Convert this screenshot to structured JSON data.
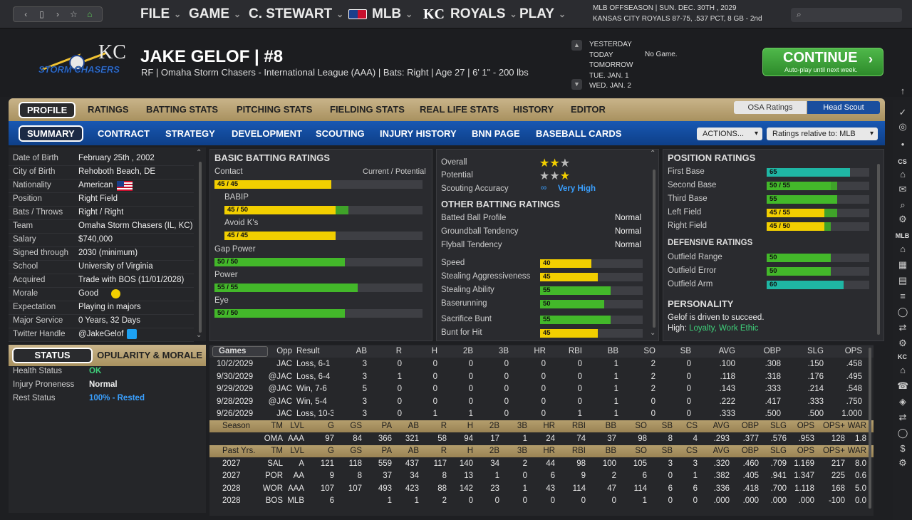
{
  "topbar": {
    "menus": [
      {
        "label": "FILE"
      },
      {
        "label": "GAME"
      },
      {
        "label": "C. STEWART"
      },
      {
        "label": "MLB"
      },
      {
        "label": "ROYALS"
      },
      {
        "label": "PLAY"
      }
    ],
    "context_line1": "MLB OFFSEASON  |  SUN. DEC. 30TH , 2029",
    "context_line2": "KANSAS CITY ROYALS   87-75, .537 PCT, 8 GB - 2nd"
  },
  "header": {
    "player_name": "JAKE GELOF  |  #8",
    "player_info": "RF | Omaha Storm Chasers - International League (AAA)  |  Bats: Right  |  Age 27  |  6' 1\" - 200 lbs",
    "logo_text": "STORM CHASERS",
    "dates": [
      "YESTERDAY",
      "TODAY",
      "TOMORROW",
      "TUE. JAN. 1",
      "WED. JAN. 2"
    ],
    "today_status": "No Game.",
    "continue_label": "CONTINUE",
    "continue_sub": "Auto-play until next week."
  },
  "tabs_primary": [
    "PROFILE",
    "RATINGS",
    "BATTING STATS",
    "PITCHING STATS",
    "FIELDING STATS",
    "REAL LIFE STATS",
    "HISTORY",
    "EDITOR"
  ],
  "tabs_secondary": [
    "SUMMARY",
    "CONTRACT",
    "STRATEGY",
    "DEVELOPMENT",
    "SCOUTING",
    "INJURY HISTORY",
    "BNN PAGE",
    "BASEBALL CARDS"
  ],
  "ratings_toggle": {
    "osa": "OSA Ratings",
    "scout": "Head Scout"
  },
  "actions_label": "ACTIONS...",
  "ratings_relative_label": "Ratings relative to: MLB",
  "bio": [
    {
      "label": "Date of Birth",
      "value": "February 25th , 2002"
    },
    {
      "label": "City of Birth",
      "value": "Rehoboth Beach, DE"
    },
    {
      "label": "Nationality",
      "value": "American"
    },
    {
      "label": "Position",
      "value": "Right Field"
    },
    {
      "label": "Bats / Throws",
      "value": "Right / Right"
    },
    {
      "label": "Team",
      "value": "Omaha Storm Chasers (IL, KC)"
    },
    {
      "label": "Salary",
      "value": "$740,000"
    },
    {
      "label": "Signed through",
      "value": "2030 (minimum)"
    },
    {
      "label": "School",
      "value": "University of Virginia"
    },
    {
      "label": "Acquired",
      "value": "Trade with BOS (11/01/2028)"
    },
    {
      "label": "Morale",
      "value": "Good"
    },
    {
      "label": "Expectation",
      "value": "Playing in majors"
    },
    {
      "label": "Major Service",
      "value": "0 Years, 32 Days"
    },
    {
      "label": "Twitter Handle",
      "value": "@JakeGelof"
    }
  ],
  "basic_batting": {
    "title": "BASIC BATTING RATINGS",
    "header": "Current / Potential",
    "items": [
      {
        "label": "Contact",
        "text": "45 / 45",
        "current": 45,
        "potential": 45,
        "color": "#f2cf00"
      },
      {
        "label": "BABIP",
        "text": "45 / 50",
        "current": 45,
        "potential": 50,
        "color": "#f2cf00"
      },
      {
        "label": "Avoid K's",
        "text": "45 / 45",
        "current": 45,
        "potential": 45,
        "color": "#f2cf00"
      },
      {
        "label": "Gap Power",
        "text": "50 / 50",
        "current": 50,
        "potential": 50,
        "color": "#43b82a"
      },
      {
        "label": "Power",
        "text": "55 / 55",
        "current": 55,
        "potential": 55,
        "color": "#43b82a"
      },
      {
        "label": "Eye",
        "text": "50 / 50",
        "current": 50,
        "potential": 50,
        "color": "#43b82a"
      }
    ]
  },
  "summary": {
    "overall_label": "Overall",
    "overall_stars": 2.5,
    "potential_label": "Potential",
    "potential_stars": 2.5,
    "accuracy_label": "Scouting Accuracy",
    "accuracy_value": "Very High",
    "other_title": "OTHER BATTING RATINGS",
    "tendencies": [
      {
        "label": "Batted Ball Profile",
        "value": "Normal"
      },
      {
        "label": "Groundball Tendency",
        "value": "Normal"
      },
      {
        "label": "Flyball Tendency",
        "value": "Normal"
      }
    ],
    "running": [
      {
        "label": "Speed",
        "value": 40,
        "color": "#f2cf00"
      },
      {
        "label": "Stealing Aggressiveness",
        "value": 45,
        "color": "#f2cf00"
      },
      {
        "label": "Stealing Ability",
        "value": 55,
        "color": "#43b82a"
      },
      {
        "label": "Baserunning",
        "value": 50,
        "color": "#43b82a"
      }
    ],
    "bunting": [
      {
        "label": "Sacrifice Bunt",
        "value": 55,
        "color": "#43b82a"
      },
      {
        "label": "Bunt for Hit",
        "value": 45,
        "color": "#f2cf00"
      }
    ]
  },
  "position": {
    "title": "POSITION RATINGS",
    "items": [
      {
        "label": "First Base",
        "text": "65",
        "current": 65,
        "potential": 65,
        "color": "#1fb6a4"
      },
      {
        "label": "Second Base",
        "text": "50 / 55",
        "current": 50,
        "potential": 55,
        "color": "#43b82a"
      },
      {
        "label": "Third Base",
        "text": "55",
        "current": 55,
        "potential": 55,
        "color": "#43b82a"
      },
      {
        "label": "Left Field",
        "text": "45 / 55",
        "current": 45,
        "potential": 55,
        "color": "#f2cf00"
      },
      {
        "label": "Right Field",
        "text": "45 / 50",
        "current": 45,
        "potential": 50,
        "color": "#f2cf00"
      }
    ],
    "def_title": "DEFENSIVE RATINGS",
    "defense": [
      {
        "label": "Outfield Range",
        "text": "50",
        "current": 50,
        "potential": 50,
        "color": "#43b82a"
      },
      {
        "label": "Outfield Error",
        "text": "50",
        "current": 50,
        "potential": 50,
        "color": "#43b82a"
      },
      {
        "label": "Outfield Arm",
        "text": "60",
        "current": 60,
        "potential": 60,
        "color": "#1fb6a4"
      }
    ],
    "personality_title": "PERSONALITY",
    "personality_text": "Gelof is driven to succeed.",
    "personality_high_label": "High:",
    "personality_high": "Loyalty, Work Ethic"
  },
  "status": {
    "tab_status": "STATUS",
    "tab_popularity": "POPULARITY & MORALE",
    "rows": [
      {
        "label": "Health Status",
        "value": "OK",
        "color": "#3fd07a"
      },
      {
        "label": "Injury Proneness",
        "value": "Normal",
        "color": "#eeeeee"
      },
      {
        "label": "Rest Status",
        "value": "100% - Rested",
        "color": "#3aa0ff"
      }
    ]
  },
  "games": {
    "headers": [
      "Games",
      "Opp",
      "Result",
      "AB",
      "R",
      "H",
      "2B",
      "3B",
      "HR",
      "RBI",
      "BB",
      "SO",
      "SB",
      "AVG",
      "OBP",
      "SLG",
      "OPS"
    ],
    "rows": [
      [
        "10/2/2029",
        "JAC",
        "Loss, 6-1",
        "3",
        "0",
        "0",
        "0",
        "0",
        "0",
        "0",
        "1",
        "2",
        "0",
        ".100",
        ".308",
        ".150",
        ".458"
      ],
      [
        "9/30/2029",
        "@JAC",
        "Loss, 6-4",
        "3",
        "1",
        "0",
        "0",
        "0",
        "0",
        "0",
        "1",
        "2",
        "0",
        ".118",
        ".318",
        ".176",
        ".495"
      ],
      [
        "9/29/2029",
        "@JAC",
        "Win, 7-6",
        "5",
        "0",
        "0",
        "0",
        "0",
        "0",
        "0",
        "1",
        "2",
        "0",
        ".143",
        ".333",
        ".214",
        ".548"
      ],
      [
        "9/28/2029",
        "@JAC",
        "Win, 5-4",
        "3",
        "0",
        "0",
        "0",
        "0",
        "0",
        "0",
        "1",
        "0",
        "0",
        ".222",
        ".417",
        ".333",
        ".750"
      ],
      [
        "9/26/2029",
        "JAC",
        "Loss, 10-3",
        "3",
        "0",
        "1",
        "1",
        "0",
        "0",
        "1",
        "1",
        "0",
        "0",
        ".333",
        ".500",
        ".500",
        "1.000"
      ]
    ],
    "season_headers": [
      "Season",
      "TM",
      "LVL",
      "G",
      "GS",
      "PA",
      "AB",
      "R",
      "H",
      "2B",
      "3B",
      "HR",
      "RBI",
      "BB",
      "SO",
      "SB",
      "CS",
      "AVG",
      "OBP",
      "SLG",
      "OPS",
      "OPS+",
      "WAR"
    ],
    "season_row": [
      "",
      "OMA",
      "AAA",
      "97",
      "84",
      "366",
      "321",
      "58",
      "94",
      "17",
      "1",
      "24",
      "74",
      "37",
      "98",
      "8",
      "4",
      ".293",
      ".377",
      ".576",
      ".953",
      "128",
      "1.8"
    ],
    "past_headers": [
      "Past Yrs.",
      "TM",
      "LVL",
      "G",
      "GS",
      "PA",
      "AB",
      "R",
      "H",
      "2B",
      "3B",
      "HR",
      "RBI",
      "BB",
      "SO",
      "SB",
      "CS",
      "AVG",
      "OBP",
      "SLG",
      "OPS",
      "OPS+",
      "WAR"
    ],
    "past_rows": [
      [
        "2027",
        "SAL",
        "A",
        "121",
        "118",
        "559",
        "437",
        "117",
        "140",
        "34",
        "2",
        "44",
        "98",
        "100",
        "105",
        "3",
        "3",
        ".320",
        ".460",
        ".709",
        "1.169",
        "217",
        "8.0"
      ],
      [
        "2027",
        "POR",
        "AA",
        "9",
        "8",
        "37",
        "34",
        "8",
        "13",
        "1",
        "0",
        "6",
        "9",
        "2",
        "6",
        "0",
        "1",
        ".382",
        ".405",
        ".941",
        "1.347",
        "225",
        "0.6"
      ],
      [
        "2028",
        "WOR",
        "AAA",
        "107",
        "107",
        "493",
        "423",
        "88",
        "142",
        "23",
        "1",
        "43",
        "114",
        "47",
        "114",
        "6",
        "6",
        ".336",
        ".418",
        ".700",
        "1.118",
        "168",
        "5.0"
      ],
      [
        "2028",
        "BOS",
        "MLB",
        "6",
        "",
        "1",
        "1",
        "2",
        "0",
        "0",
        "0",
        "0",
        "0",
        "0",
        "1",
        "0",
        "0",
        ".000",
        ".000",
        ".000",
        ".000",
        "-100",
        "0.0"
      ]
    ]
  },
  "sidebar_labels": [
    "CS",
    "MLB",
    "KC"
  ]
}
